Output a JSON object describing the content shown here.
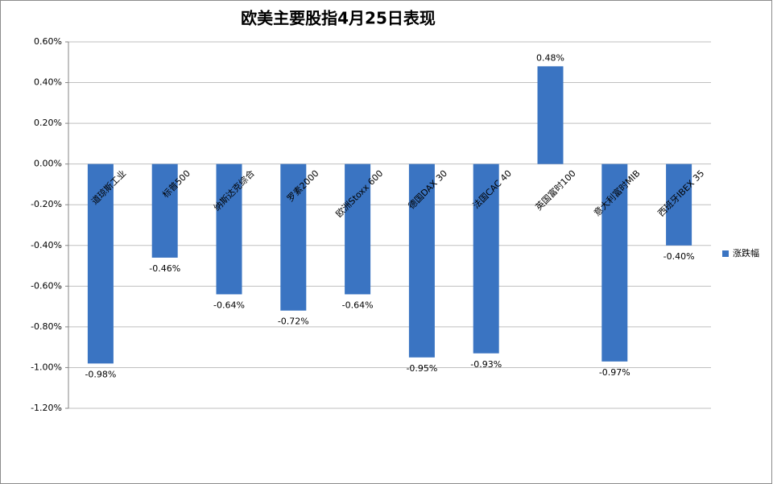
{
  "chart_data": {
    "type": "bar",
    "title": "欧美主要股指4月25日表现",
    "categories": [
      "道琼斯工业",
      "标普500",
      "纳斯达克综合",
      "罗素2000",
      "欧洲Stoxx 600",
      "德国DAX 30",
      "法国CAC 40",
      "英国富时100",
      "意大利富时MIB",
      "西班牙IBEX 35"
    ],
    "series": [
      {
        "name": "涨跌幅",
        "color": "#3a74c2",
        "values": [
          -0.98,
          -0.46,
          -0.64,
          -0.72,
          -0.64,
          -0.95,
          -0.93,
          0.48,
          -0.97,
          -0.4
        ],
        "value_labels": [
          "-0.98%",
          "-0.46%",
          "-0.64%",
          "-0.72%",
          "-0.64%",
          "-0.95%",
          "-0.93%",
          "0.48%",
          "-0.97%",
          "-0.40%"
        ]
      }
    ],
    "ylim": [
      -1.2,
      0.6
    ],
    "yticks": [
      {
        "value": 0.6,
        "label": "0.60%"
      },
      {
        "value": 0.4,
        "label": "0.40%"
      },
      {
        "value": 0.2,
        "label": "0.20%"
      },
      {
        "value": 0,
        "label": "0.00%"
      },
      {
        "value": -0.2,
        "label": "-0.20%"
      },
      {
        "value": -0.4,
        "label": "-0.40%"
      },
      {
        "value": -0.6,
        "label": "-0.60%"
      },
      {
        "value": -0.8,
        "label": "-0.80%"
      },
      {
        "value": -1.0,
        "label": "-1.00%"
      },
      {
        "value": -1.2,
        "label": "-1.20%"
      }
    ],
    "grid": true,
    "legend": "right"
  }
}
